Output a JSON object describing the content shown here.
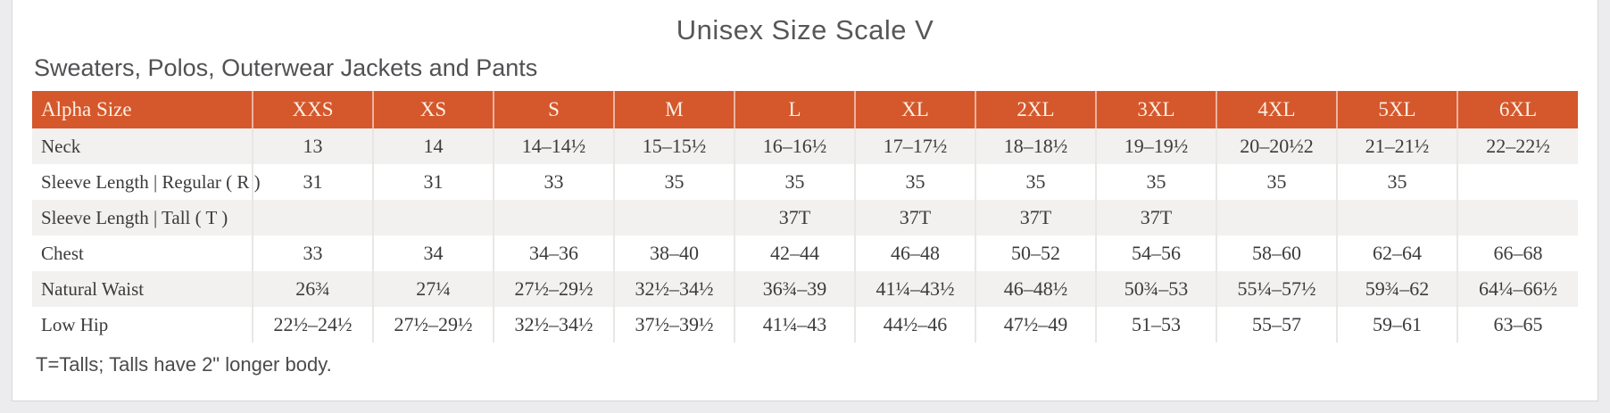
{
  "page": {
    "title": "Unisex Size Scale V",
    "subtitle": "Sweaters, Polos, Outerwear Jackets and Pants",
    "footnote": "T=Talls; Talls have 2\" longer body."
  },
  "colors": {
    "header_bg": "#d5572c",
    "header_text": "#faf0e4",
    "alt_row_bg": "#f2f1ef",
    "body_text": "#3b3b3c"
  },
  "chart_data": {
    "type": "table",
    "title": "Unisex Size Scale V",
    "columns": [
      "Alpha Size",
      "XXS",
      "XS",
      "S",
      "M",
      "L",
      "XL",
      "2XL",
      "3XL",
      "4XL",
      "5XL",
      "6XL"
    ],
    "rows": [
      {
        "label": "Neck",
        "values": [
          "13",
          "14",
          "14–14½",
          "15–15½",
          "16–16½",
          "17–17½",
          "18–18½",
          "19–19½",
          "20–20½2",
          "21–21½",
          "22–22½"
        ]
      },
      {
        "label": "Sleeve Length | Regular ( R )",
        "values": [
          "31",
          "31",
          "33",
          "35",
          "35",
          "35",
          "35",
          "35",
          "35",
          "35",
          ""
        ]
      },
      {
        "label": "Sleeve Length | Tall ( T )",
        "values": [
          "",
          "",
          "",
          "",
          "37T",
          "37T",
          "37T",
          "37T",
          "",
          "",
          ""
        ]
      },
      {
        "label": "Chest",
        "values": [
          "33",
          "34",
          "34–36",
          "38–40",
          "42–44",
          "46–48",
          "50–52",
          "54–56",
          "58–60",
          "62–64",
          "66–68"
        ]
      },
      {
        "label": "Natural Waist",
        "values": [
          "26¾",
          "27¼",
          "27½–29½",
          "32½–34½",
          "36¾–39",
          "41¼–43½",
          "46–48½",
          "50¾–53",
          "55¼–57½",
          "59¾–62",
          "64¼–66½"
        ]
      },
      {
        "label": "Low Hip",
        "values": [
          "22½–24½",
          "27½–29½",
          "32½–34½",
          "37½–39½",
          "41¼–43",
          "44½–46",
          "47½–49",
          "51–53",
          "55–57",
          "59–61",
          "63–65"
        ]
      }
    ]
  }
}
